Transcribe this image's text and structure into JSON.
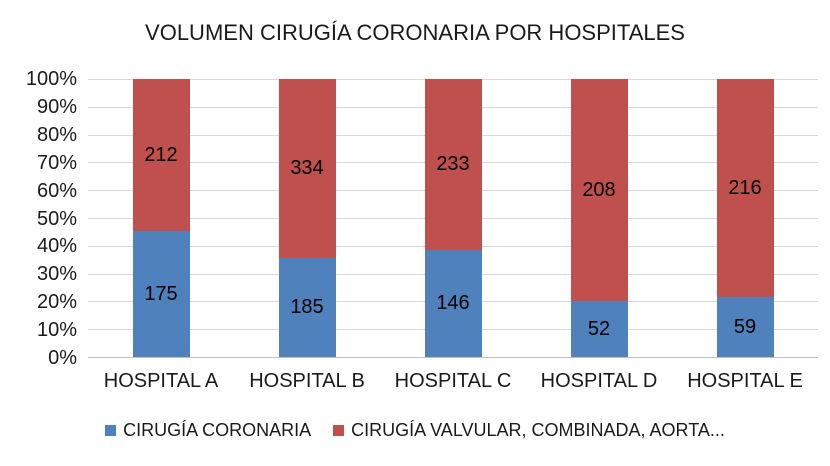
{
  "chart_data": {
    "type": "bar",
    "subtype": "stacked-100-percent",
    "title": "VOLUMEN CIRUGÍA CORONARIA POR HOSPITALES",
    "categories": [
      "HOSPITAL A",
      "HOSPITAL B",
      "HOSPITAL C",
      "HOSPITAL D",
      "HOSPITAL E"
    ],
    "series": [
      {
        "name": "CIRUGÍA CORONARIA",
        "color": "#4F81BD",
        "values": [
          175,
          185,
          146,
          52,
          59
        ]
      },
      {
        "name": "CIRUGÍA VALVULAR, COMBINADA, AORTA...",
        "color": "#C0504D",
        "values": [
          212,
          334,
          233,
          208,
          216
        ]
      }
    ],
    "y_axis": {
      "ticks": [
        "100%",
        "90%",
        "80%",
        "70%",
        "60%",
        "50%",
        "40%",
        "30%",
        "20%",
        "10%",
        "0%"
      ],
      "min": 0,
      "max": 100,
      "unit": "%"
    },
    "grid": true,
    "legend_position": "bottom",
    "colors": {
      "grid": "#D9D9D9",
      "axis": "#BFBFBF",
      "text": "#1A1A1A",
      "background": "#FFFFFF"
    }
  }
}
